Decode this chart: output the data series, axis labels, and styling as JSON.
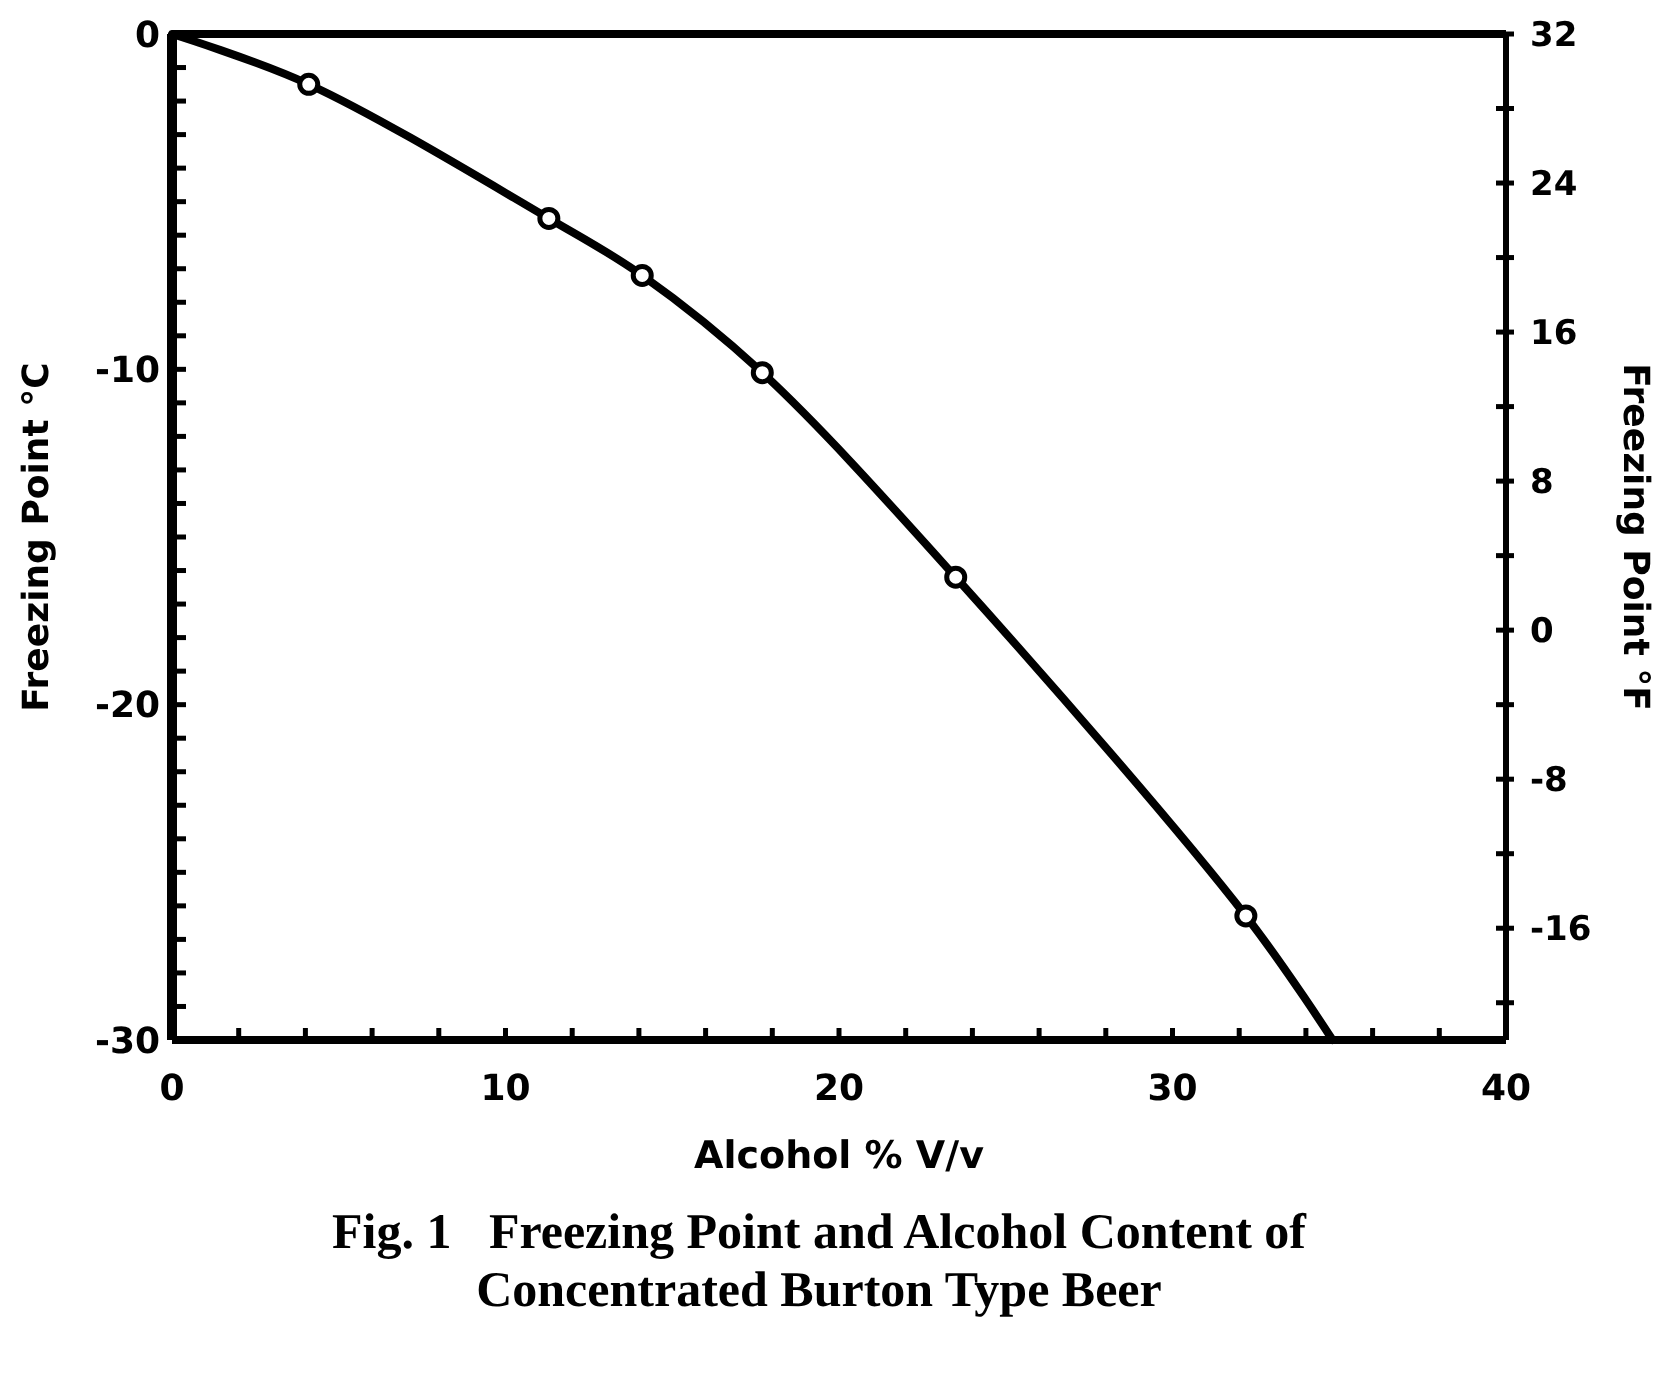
{
  "chart_data": {
    "type": "line",
    "title": "Fig. 1   Freezing Point and Alcohol Content of\nConcentrated Burton Type Beer",
    "xlabel": "Alcohol % V/v",
    "ylabel": "Freezing Point °C",
    "y2label": "Freezing Point °F",
    "xlim": [
      0,
      40
    ],
    "xticks": [
      0,
      {
        "value": 2,
        "label": null
      },
      {
        "value": 4,
        "label": null
      },
      {
        "value": 6,
        "label": null
      },
      {
        "value": 8,
        "label": null
      },
      10,
      {
        "value": 12,
        "label": null
      },
      {
        "value": 14,
        "label": null
      },
      {
        "value": 16,
        "label": null
      },
      {
        "value": 18,
        "label": null
      },
      20,
      {
        "value": 22,
        "label": null
      },
      {
        "value": 24,
        "label": null
      },
      {
        "value": 26,
        "label": null
      },
      {
        "value": 28,
        "label": null
      },
      30,
      {
        "value": 32,
        "label": null
      },
      {
        "value": 34,
        "label": null
      },
      {
        "value": 36,
        "label": null
      },
      {
        "value": 38,
        "label": null
      },
      40
    ],
    "ylim": [
      -30,
      0
    ],
    "yticks": [
      0,
      {
        "value": -1,
        "label": null
      },
      {
        "value": -2,
        "label": null
      },
      {
        "value": -3,
        "label": null
      },
      {
        "value": -4,
        "label": null
      },
      {
        "value": -5,
        "label": null
      },
      {
        "value": -6,
        "label": null
      },
      {
        "value": -7,
        "label": null
      },
      {
        "value": -8,
        "label": null
      },
      {
        "value": -9,
        "label": null
      },
      -10,
      {
        "value": -11,
        "label": null
      },
      {
        "value": -12,
        "label": null
      },
      {
        "value": -13,
        "label": null
      },
      {
        "value": -14,
        "label": null
      },
      {
        "value": -15,
        "label": null
      },
      {
        "value": -16,
        "label": null
      },
      {
        "value": -17,
        "label": null
      },
      {
        "value": -18,
        "label": null
      },
      {
        "value": -19,
        "label": null
      },
      -20,
      {
        "value": -21,
        "label": null
      },
      {
        "value": -22,
        "label": null
      },
      {
        "value": -23,
        "label": null
      },
      {
        "value": -24,
        "label": null
      },
      {
        "value": -25,
        "label": null
      },
      {
        "value": -26,
        "label": null
      },
      {
        "value": -27,
        "label": null
      },
      {
        "value": -28,
        "label": null
      },
      {
        "value": -29,
        "label": null
      },
      -30
    ],
    "y2lim": [
      -22,
      32
    ],
    "y2ticks": [
      32,
      {
        "value": 28,
        "label": null
      },
      24,
      {
        "value": 20,
        "label": null
      },
      16,
      {
        "value": 12,
        "label": null
      },
      8,
      {
        "value": 4,
        "label": null
      },
      0,
      {
        "value": -4,
        "label": null
      },
      -8,
      {
        "value": -12,
        "label": null
      },
      -16,
      {
        "value": -20,
        "label": null
      }
    ],
    "series": [
      {
        "color": "#000000",
        "marker": "none",
        "line_style": "solid",
        "x": [
          0,
          4.1,
          11.3,
          14.1,
          17.7,
          23.5,
          32.2,
          34.8
        ],
        "values": [
          0,
          -1.5,
          -5.5,
          -7.2,
          -10.1,
          -16.2,
          -26.3,
          -30
        ]
      },
      {
        "type": "scatter",
        "color": "#000000",
        "marker": "circle",
        "x": [
          4.1,
          11.3,
          14.1,
          17.7,
          23.5,
          32.2
        ],
        "values": [
          -1.5,
          -5.5,
          -7.2,
          -10.1,
          -16.2,
          -26.3
        ]
      }
    ]
  }
}
